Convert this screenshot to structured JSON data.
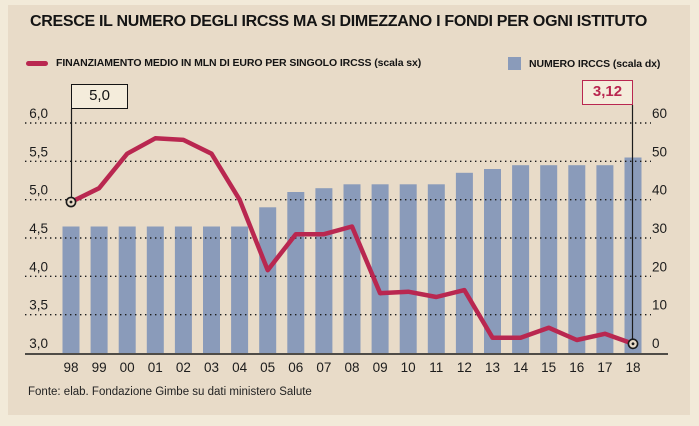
{
  "title": "CRESCE IL NUMERO DEGLI IRCSS MA SI DIMEZZANO I FONDI PER OGNI ISTITUTO",
  "legend": [
    {
      "label": "FINANZIAMENTO MEDIO IN MLN DI EURO PER SINGOLO IRCSS (scala sx)",
      "type": "line",
      "color": "#b92750"
    },
    {
      "label": "NUMERO IRCCS (scala dx)",
      "type": "bar",
      "color": "#8a9bba"
    }
  ],
  "annotations": [
    {
      "label": "5,0",
      "year": "98",
      "series": "line",
      "style": "dark"
    },
    {
      "label": "3,12",
      "year": "18",
      "series": "line",
      "style": "red"
    }
  ],
  "footer": "Fonte: elab. Fondazione Gimbe su dati ministero Salute",
  "colors": {
    "card_bg": "#e8dbc8",
    "frame_bg": "#f2ead9",
    "bar": "#8a9bba",
    "line": "#b92750",
    "axis": "#1c1c1c",
    "text": "#141414"
  },
  "chart_data": {
    "type": "bar",
    "subtype": "combo bar+line, dual axis",
    "categories": [
      "98",
      "99",
      "00",
      "01",
      "02",
      "03",
      "04",
      "05",
      "06",
      "07",
      "08",
      "09",
      "10",
      "11",
      "12",
      "13",
      "14",
      "15",
      "16",
      "17",
      "18"
    ],
    "series": [
      {
        "name": "FINANZIAMENTO MEDIO IN MLN DI EURO PER SINGOLO IRCSS",
        "type": "line",
        "axis": "left",
        "color": "#b92750",
        "values": [
          4.97,
          5.15,
          5.6,
          5.8,
          5.78,
          5.6,
          5.0,
          4.08,
          4.55,
          4.55,
          4.65,
          3.78,
          3.8,
          3.73,
          3.82,
          3.2,
          3.2,
          3.33,
          3.17,
          3.25,
          3.12
        ]
      },
      {
        "name": "NUMERO IRCCS",
        "type": "bar",
        "axis": "right",
        "color": "#8a9bba",
        "values": [
          33,
          33,
          33,
          33,
          33,
          33,
          33,
          38,
          42,
          43,
          44,
          44,
          44,
          44,
          47,
          48,
          49,
          49,
          49,
          49,
          51
        ]
      }
    ],
    "left_axis": {
      "label": "scala sx",
      "ticks": [
        "6,0",
        "5,5",
        "5,0",
        "4,5",
        "4,0",
        "3,5",
        "3,0"
      ],
      "values": [
        6,
        5.5,
        5,
        4.5,
        4,
        3.5,
        3
      ],
      "range": [
        3,
        6
      ]
    },
    "right_axis": {
      "label": "scala dx",
      "ticks": [
        "60",
        "50",
        "40",
        "30",
        "20",
        "10",
        "0"
      ],
      "values": [
        60,
        50,
        40,
        30,
        20,
        10,
        0
      ],
      "range": [
        0,
        60
      ]
    },
    "grid": "dotted-horizontal",
    "legend_position": "top"
  }
}
